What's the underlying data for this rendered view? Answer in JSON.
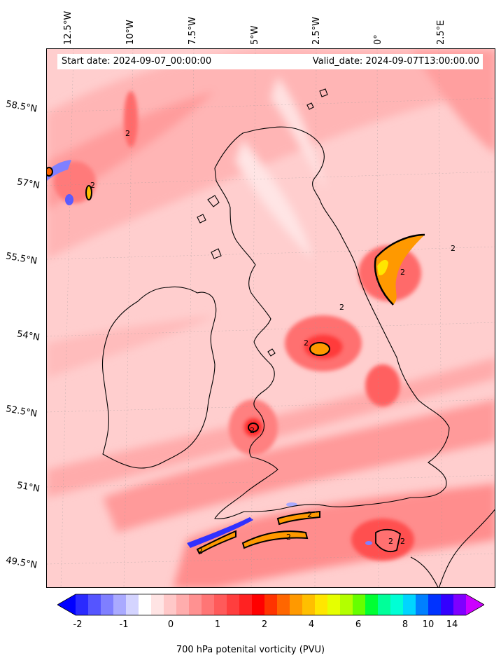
{
  "header": {
    "start_date": "Start date: 2024-09-07_00:00:00",
    "valid_date": "Valid_date: 2024-09-07T13:00:00.00"
  },
  "longitude_labels": [
    "12.5°W",
    "10°W",
    "7.5°W",
    "5°W",
    "2.5°W",
    "0°",
    "2.5°E"
  ],
  "latitude_labels": [
    "58.5°N",
    "57°N",
    "55.5°N",
    "54°N",
    "52.5°N",
    "51°N",
    "49.5°N"
  ],
  "colorbar": {
    "title": "700 hPa potenital vorticity (PVU)",
    "tick_labels": [
      "-2",
      "-1",
      "0",
      "1",
      "2",
      "4",
      "6",
      "8",
      "10",
      "14"
    ],
    "colors": [
      "#0000ff",
      "#2a2aff",
      "#5555ff",
      "#7f7fff",
      "#aaaaff",
      "#d4d4ff",
      "#ffffff",
      "#ffe4e4",
      "#ffc8c8",
      "#ffadad",
      "#ff9191",
      "#ff7575",
      "#ff5a5a",
      "#ff3e3e",
      "#ff2222",
      "#ff0000",
      "#ff3300",
      "#ff6600",
      "#ff9900",
      "#ffbf00",
      "#ffe600",
      "#e6ff00",
      "#b3ff00",
      "#66ff00",
      "#00ff33",
      "#00ff99",
      "#00ffd5",
      "#00d5ff",
      "#0080ff",
      "#0033ff",
      "#3300ff",
      "#7f00ff",
      "#cc00ff"
    ]
  },
  "contour_labels": [
    "2",
    "2",
    "2",
    "2",
    "2",
    "2",
    "2",
    "2",
    "2",
    "2",
    "2",
    "2"
  ],
  "colors": {
    "background_field": "#ffd2d2",
    "coastline": "#000000"
  }
}
